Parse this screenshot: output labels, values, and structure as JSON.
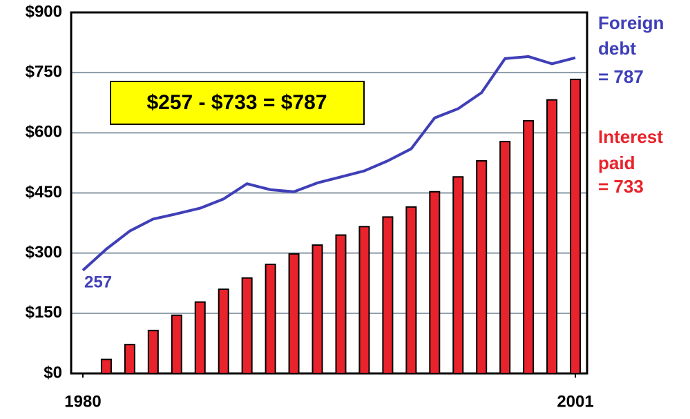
{
  "chart_data": {
    "type": "bar-line",
    "ylim": [
      0,
      900
    ],
    "yticks": [
      {
        "value": 0,
        "label": "$0"
      },
      {
        "value": 150,
        "label": "$150"
      },
      {
        "value": 300,
        "label": "$300"
      },
      {
        "value": 450,
        "label": "$450"
      },
      {
        "value": 600,
        "label": "$600"
      },
      {
        "value": 750,
        "label": "$750"
      },
      {
        "value": 900,
        "label": "$900"
      }
    ],
    "xlim": [
      1979.5,
      2001.5
    ],
    "xticks": [
      1980,
      2001
    ],
    "grid": true,
    "series": [
      {
        "name": "Foreign debt",
        "type": "line",
        "color": "#3f3fb8",
        "x": [
          1980,
          1981,
          1982,
          1983,
          1984,
          1985,
          1986,
          1987,
          1988,
          1989,
          1990,
          1991,
          1992,
          1993,
          1994,
          1995,
          1996,
          1997,
          1998,
          1999,
          2000,
          2001
        ],
        "values": [
          257,
          310,
          355,
          385,
          398,
          412,
          435,
          473,
          458,
          453,
          475,
          490,
          505,
          530,
          560,
          637,
          660,
          700,
          785,
          790,
          772,
          787
        ]
      },
      {
        "name": "Interest paid",
        "type": "bar",
        "color": "#e8232b",
        "x": [
          1981,
          1982,
          1983,
          1984,
          1985,
          1986,
          1987,
          1988,
          1989,
          1990,
          1991,
          1992,
          1993,
          1994,
          1995,
          1996,
          1997,
          1998,
          1999,
          2000,
          2001
        ],
        "values": [
          35,
          72,
          107,
          145,
          178,
          210,
          238,
          272,
          298,
          320,
          345,
          366,
          390,
          415,
          453,
          490,
          530,
          578,
          630,
          682,
          733
        ]
      }
    ],
    "annotations": [
      "$257 - $733 = $787",
      "257",
      "= 787",
      "= 733"
    ]
  }
}
